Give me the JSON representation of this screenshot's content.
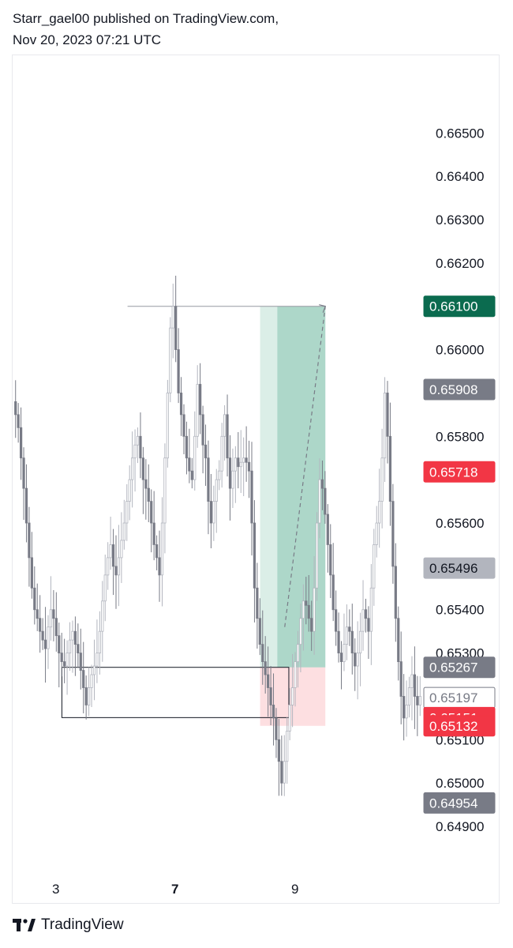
{
  "header": {
    "line1": "Starr_gael00 published on TradingView.com,",
    "line2": "Nov 20, 2023 07:21 UTC"
  },
  "footer": {
    "brand": "TradingView",
    "logo": "tradingview-logo-icon"
  },
  "chart_data": {
    "type": "candlestick",
    "title": "",
    "xlabel": "",
    "ylabel": "",
    "ylim": [
      0.6486,
      0.6667
    ],
    "y_ticks": [
      "0.64900",
      "0.65000",
      "0.65100",
      "0.65300",
      "0.65400",
      "0.65600",
      "0.65800",
      "0.66000",
      "0.66200",
      "0.66300",
      "0.66400",
      "0.66500"
    ],
    "x_ticks": [
      {
        "label": "3",
        "bold": false
      },
      {
        "label": "7",
        "bold": true
      },
      {
        "label": "9",
        "bold": false
      }
    ],
    "price_labels": [
      {
        "text": "0.66100",
        "value": 0.661,
        "bg": "#0b6b4f",
        "fg": "#ffffff",
        "border": "#0b6b4f"
      },
      {
        "text": "0.65908",
        "value": 0.65908,
        "bg": "#787b86",
        "fg": "#ffffff",
        "border": "#787b86"
      },
      {
        "text": "0.65718",
        "value": 0.65718,
        "bg": "#f23645",
        "fg": "#ffffff",
        "border": "#f23645"
      },
      {
        "text": "0.65496",
        "value": 0.65496,
        "bg": "#b2b5be",
        "fg": "#131722",
        "border": "#b2b5be"
      },
      {
        "text": "0.65267",
        "value": 0.65267,
        "bg": "#787b86",
        "fg": "#ffffff",
        "border": "#787b86"
      },
      {
        "text": "0.65197",
        "value": 0.65197,
        "bg": "#ffffff",
        "fg": "#787b86",
        "border": "#787b86"
      },
      {
        "text": "0.65151",
        "value": 0.65151,
        "bg": "#f23645",
        "fg": "#ffffff",
        "border": "#f23645"
      },
      {
        "text": "0.65132",
        "value": 0.65132,
        "bg": "#f23645",
        "fg": "#ffffff",
        "border": "#f23645"
      },
      {
        "text": "0.64954",
        "value": 0.64954,
        "bg": "#787b86",
        "fg": "#ffffff",
        "border": "#787b86"
      }
    ],
    "close_series": [
      0.6585,
      0.6582,
      0.6575,
      0.6568,
      0.656,
      0.6552,
      0.6545,
      0.654,
      0.6538,
      0.6535,
      0.6533,
      0.6531,
      0.6536,
      0.654,
      0.6538,
      0.6534,
      0.653,
      0.6528,
      0.6527,
      0.653,
      0.6533,
      0.6535,
      0.6532,
      0.653,
      0.6526,
      0.6522,
      0.6518,
      0.6522,
      0.6525,
      0.6527,
      0.653,
      0.6535,
      0.6542,
      0.6548,
      0.6552,
      0.6555,
      0.655,
      0.6548,
      0.6552,
      0.6556,
      0.656,
      0.6565,
      0.657,
      0.6575,
      0.6578,
      0.658,
      0.6575,
      0.657,
      0.6568,
      0.6565,
      0.656,
      0.6555,
      0.6552,
      0.6548,
      0.656,
      0.6575,
      0.659,
      0.6605,
      0.661,
      0.66,
      0.659,
      0.6585,
      0.658,
      0.6575,
      0.6572,
      0.657,
      0.658,
      0.6592,
      0.6585,
      0.6578,
      0.6575,
      0.6565,
      0.656,
      0.6565,
      0.657,
      0.6572,
      0.658,
      0.6585,
      0.6575,
      0.6568,
      0.6572,
      0.6575,
      0.6573,
      0.6574,
      0.6575,
      0.6574,
      0.6572,
      0.656,
      0.6545,
      0.6538,
      0.6532,
      0.6528,
      0.6525,
      0.6522,
      0.6518,
      0.6515,
      0.651,
      0.6505,
      0.65,
      0.6505,
      0.6512,
      0.6518,
      0.6522,
      0.6528,
      0.6532,
      0.6538,
      0.6542,
      0.6541,
      0.6538,
      0.6535,
      0.6545,
      0.656,
      0.657,
      0.6568,
      0.6562,
      0.6555,
      0.6548,
      0.654,
      0.6535,
      0.653,
      0.6528,
      0.6532,
      0.6536,
      0.6535,
      0.653,
      0.6527,
      0.653,
      0.6535,
      0.654,
      0.6538,
      0.6535,
      0.6545,
      0.6555,
      0.656,
      0.6565,
      0.6575,
      0.659,
      0.658,
      0.6565,
      0.655,
      0.6538,
      0.6528,
      0.652,
      0.6515,
      0.6518,
      0.6522,
      0.6525,
      0.652,
      0.6518,
      0.652
    ],
    "drawings": {
      "top_line": {
        "x_from": 0.28,
        "x_to": 0.762,
        "y": 0.661
      },
      "range_box": {
        "x_from": 0.12,
        "x_to": 0.673,
        "y_top": 0.65267,
        "y_bottom": 0.65151
      },
      "long_position": {
        "x_from": 0.603,
        "x_split": 0.645,
        "x_to": 0.762,
        "entry": 0.65267,
        "target": 0.661,
        "stop": 0.65132,
        "profit_color": "#0b8a5f",
        "loss_color": "#f23645"
      },
      "projection": {
        "x_from": 0.663,
        "y_from": 0.6536,
        "x_to": 0.762,
        "y_to": 0.661
      }
    }
  }
}
